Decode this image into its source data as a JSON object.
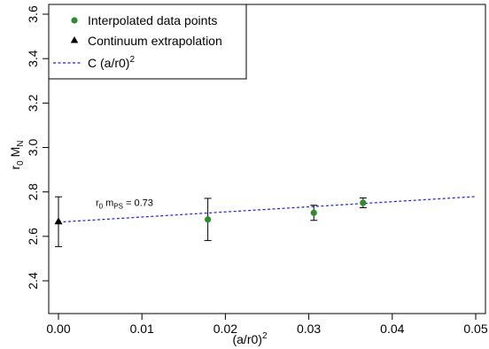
{
  "chart_data": {
    "type": "scatter",
    "title": "",
    "xlabel": "(a/r0)",
    "xlabel_sup": "2",
    "ylabel_base": "r",
    "ylabel_sub1": "0",
    "ylabel_mid": " M",
    "ylabel_sub2": "N",
    "xlim": [
      -0.001,
      0.051
    ],
    "ylim": [
      2.3,
      3.62
    ],
    "xticks": [
      0.0,
      0.01,
      0.02,
      0.03,
      0.04,
      0.05
    ],
    "xtick_labels": [
      "0.00",
      "0.01",
      "0.02",
      "0.03",
      "0.04",
      "0.05"
    ],
    "yticks": [
      2.4,
      2.6,
      2.8,
      3.0,
      3.2,
      3.4,
      3.6
    ],
    "ytick_labels": [
      "2.4",
      "2.6",
      "2.8",
      "3.0",
      "3.2",
      "3.4",
      "3.6"
    ],
    "grid": false,
    "legend_position": "top-left",
    "series": [
      {
        "name": "Interpolated data points",
        "marker": "circle",
        "color": "#2e8b2e",
        "points": [
          {
            "x": 0.0179,
            "y": 2.676,
            "err": 0.095
          },
          {
            "x": 0.0306,
            "y": 2.706,
            "err": 0.034
          },
          {
            "x": 0.0365,
            "y": 2.751,
            "err": 0.022
          }
        ]
      },
      {
        "name": "Continuum extrapolation",
        "marker": "triangle",
        "color": "#000000",
        "points": [
          {
            "x": 0.0,
            "y": 2.666,
            "err": 0.112
          }
        ]
      },
      {
        "name": "C (a/r0)",
        "name_sup": "2",
        "type": "line",
        "style": "dashed",
        "color": "#1f1fdd",
        "intercept": 2.664,
        "slope": 2.3
      }
    ],
    "annotation": {
      "base": "r",
      "sub1": "0",
      "mid": " m",
      "sub2": "PS",
      "tail": " = 0.73",
      "x": 0.0001,
      "y": 2.737
    }
  }
}
